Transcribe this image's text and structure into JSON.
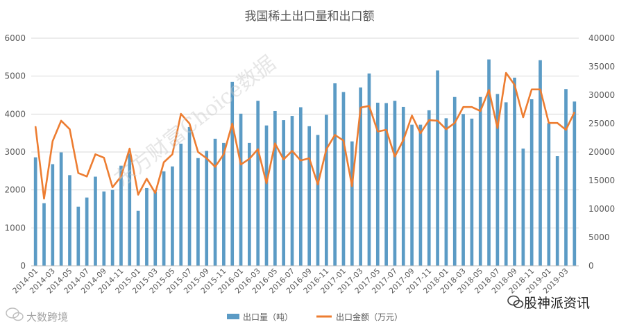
{
  "chart_data": {
    "type": "bar+line",
    "title": "我国稀土出口量和出口额",
    "categories": [
      "2014-01",
      "2014-02",
      "2014-03",
      "2014-04",
      "2014-05",
      "2014-06",
      "2014-07",
      "2014-08",
      "2014-09",
      "2014-10",
      "2014-11",
      "2014-12",
      "2015-01",
      "2015-02",
      "2015-03",
      "2015-04",
      "2015-05",
      "2015-06",
      "2015-07",
      "2015-08",
      "2015-09",
      "2015-10",
      "2015-11",
      "2015-12",
      "2016-01",
      "2016-02",
      "2016-03",
      "2016-04",
      "2016-05",
      "2016-06",
      "2016-07",
      "2016-08",
      "2016-09",
      "2016-10",
      "2016-11",
      "2016-12",
      "2017-01",
      "2017-02",
      "2017-03",
      "2017-04",
      "2017-05",
      "2017-06",
      "2017-07",
      "2017-08",
      "2017-09",
      "2017-10",
      "2017-11",
      "2017-12",
      "2018-01",
      "2018-02",
      "2018-03",
      "2018-04",
      "2018-05",
      "2018-06",
      "2018-07",
      "2018-08",
      "2018-09",
      "2018-10",
      "2018-11",
      "2018-12",
      "2019-01",
      "2019-02",
      "2019-03",
      "2019-04"
    ],
    "x_tick_labels": [
      "2014-01",
      "2014-03",
      "2014-05",
      "2014-07",
      "2014-09",
      "2014-11",
      "2015-01",
      "2015-03",
      "2015-05",
      "2015-07",
      "2015-09",
      "2015-11",
      "2016-01",
      "2016-03",
      "2016-05",
      "2016-07",
      "2016-09",
      "2016-11",
      "2017-01",
      "2017-03",
      "2017-05",
      "2017-07",
      "2017-09",
      "2017-11",
      "2018-01",
      "2018-03",
      "2018-05",
      "2018-07",
      "2018-09",
      "2018-11",
      "2019-01",
      "2019-03"
    ],
    "series": [
      {
        "name": "出口量（吨）",
        "type": "bar",
        "axis": "left",
        "color": "#5b9bc5",
        "values": [
          2860,
          1650,
          2680,
          2990,
          2390,
          1560,
          1800,
          2350,
          1960,
          2000,
          2640,
          2960,
          1450,
          2050,
          1950,
          2490,
          2620,
          3220,
          3660,
          2840,
          3030,
          3350,
          3240,
          4850,
          4010,
          3240,
          4350,
          3700,
          4080,
          3840,
          3950,
          4180,
          3680,
          3450,
          3980,
          4810,
          4580,
          3280,
          4700,
          5070,
          4300,
          4290,
          4350,
          4190,
          3720,
          3720,
          4100,
          5150,
          3890,
          4450,
          4000,
          3880,
          4450,
          5440,
          4530,
          4310,
          4960,
          3090,
          4390,
          5420,
          3760,
          2890,
          4660,
          4330
        ]
      },
      {
        "name": "出口金额（万元）",
        "type": "line",
        "axis": "right",
        "color": "#ed7d31",
        "values": [
          24500,
          11800,
          21900,
          25500,
          24000,
          16300,
          15700,
          19600,
          19000,
          13800,
          15700,
          20600,
          12500,
          15300,
          12800,
          18200,
          19600,
          26700,
          25000,
          20000,
          18900,
          17400,
          19600,
          25000,
          17800,
          18800,
          20500,
          14500,
          21500,
          18700,
          20200,
          18500,
          18900,
          14300,
          20500,
          23000,
          22000,
          14000,
          27800,
          28100,
          23600,
          23900,
          19200,
          22100,
          26400,
          23300,
          25600,
          25500,
          24000,
          25100,
          27900,
          27900,
          27200,
          30900,
          24200,
          33900,
          31800,
          26100,
          31000,
          31000,
          25100,
          25100,
          23900,
          27000
        ]
      }
    ],
    "y_left": {
      "min": 0,
      "max": 6000,
      "ticks": [
        "0",
        "1000",
        "2000",
        "3000",
        "4000",
        "5000",
        "6000"
      ]
    },
    "y_right": {
      "min": 0,
      "max": 40000,
      "ticks": [
        "0",
        "5000",
        "10000",
        "15000",
        "20000",
        "25000",
        "30000",
        "35000",
        "40000"
      ]
    },
    "grid": true,
    "legend_position": "bottom",
    "watermark_texts": [
      "东方财富Choice数据",
      "大数跨境",
      "股神派资讯"
    ]
  }
}
